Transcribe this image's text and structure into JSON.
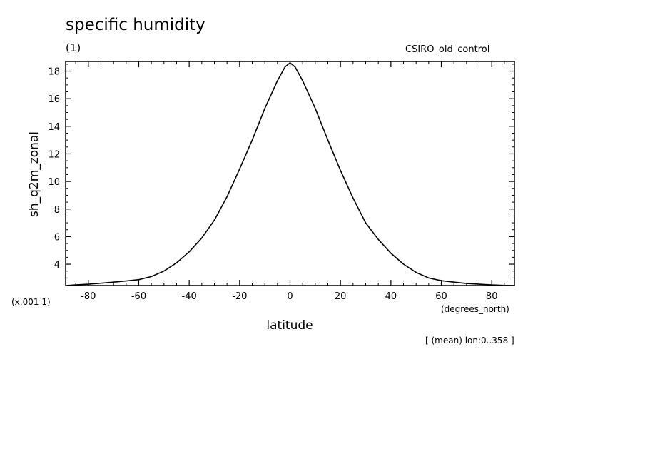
{
  "chart_data": {
    "type": "line",
    "title": "specific humidity",
    "subtitle": "(1)",
    "run_name": "CSIRO_old_control",
    "xlabel": "latitude",
    "x_units": "(degrees_north)",
    "ylabel": "sh_q2m_zonal",
    "y_scale_note": "(x.001 1)",
    "footnote": "[ (mean) lon:0..358 ]",
    "xlim": [
      -89,
      89
    ],
    "ylim": [
      2.45,
      18.7
    ],
    "x_ticks": [
      -80,
      -60,
      -40,
      -20,
      0,
      20,
      40,
      60,
      80
    ],
    "y_ticks": [
      4,
      6,
      8,
      10,
      12,
      14,
      16,
      18
    ],
    "x_tick_labels": [
      "-80",
      "-60",
      "-40",
      "-20",
      "0",
      "20",
      "40",
      "60",
      "80"
    ],
    "y_tick_labels": [
      "4",
      "6",
      "8",
      "10",
      "12",
      "14",
      "16",
      "18"
    ],
    "grid": false,
    "series": [
      {
        "x": [
          -89,
          -85,
          -80,
          -75,
          -70,
          -65,
          -60,
          -55,
          -50,
          -45,
          -40,
          -35,
          -30,
          -25,
          -20,
          -15,
          -10,
          -5,
          -2,
          0,
          2,
          5,
          10,
          15,
          20,
          25,
          30,
          35,
          40,
          45,
          50,
          55,
          60,
          65,
          70,
          75,
          80,
          85,
          89
        ],
        "y": [
          2.45,
          2.5,
          2.55,
          2.62,
          2.7,
          2.78,
          2.88,
          3.1,
          3.5,
          4.1,
          4.9,
          5.9,
          7.2,
          8.9,
          10.9,
          13.0,
          15.3,
          17.3,
          18.3,
          18.6,
          18.3,
          17.3,
          15.3,
          13.0,
          10.8,
          8.8,
          7.0,
          5.8,
          4.8,
          4.0,
          3.4,
          3.0,
          2.8,
          2.7,
          2.6,
          2.55,
          2.5,
          2.46,
          2.45
        ]
      }
    ]
  }
}
